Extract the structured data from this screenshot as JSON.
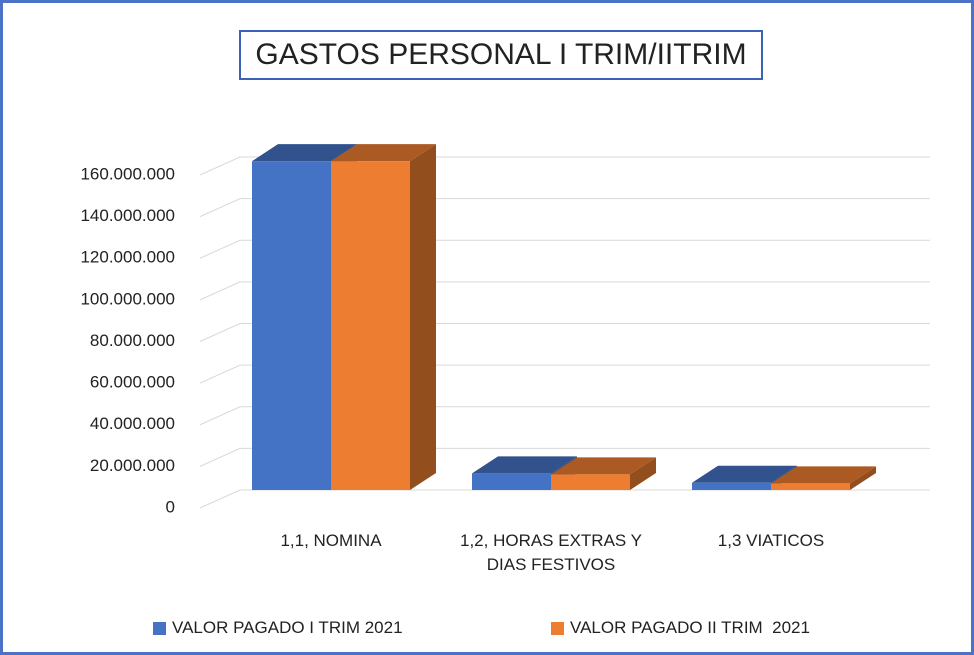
{
  "chart_data": {
    "type": "bar3d",
    "title": "GASTOS PERSONAL I TRIM/IITRIM",
    "categories": [
      "1,1, NOMINA",
      "1,2, HORAS EXTRAS Y DIAS FESTIVOS",
      "1,3 VIATICOS"
    ],
    "series": [
      {
        "name": "VALOR PAGADO I TRIM 2021",
        "color": "#4472c4",
        "values": [
          158000000,
          8000000,
          3500000
        ]
      },
      {
        "name": "VALOR PAGADO II TRIM  2021",
        "color": "#ed7d31",
        "values": [
          158000000,
          7500000,
          3200000
        ]
      }
    ],
    "ylim": [
      0,
      160000000
    ],
    "yticks": [
      0,
      {
        "value": 20000000,
        "label": "20.000.000"
      },
      {
        "value": 40000000,
        "label": "40.000.000"
      },
      {
        "value": 60000000,
        "label": "60.000.000"
      },
      {
        "value": 80000000,
        "label": "80.000.000"
      },
      {
        "value": 100000000,
        "label": "100.000.000"
      },
      {
        "value": 120000000,
        "label": "120.000.000"
      },
      {
        "value": 140000000,
        "label": "140.000.000"
      },
      {
        "value": 160000000,
        "label": "160.000.000"
      }
    ],
    "grid": true
  }
}
